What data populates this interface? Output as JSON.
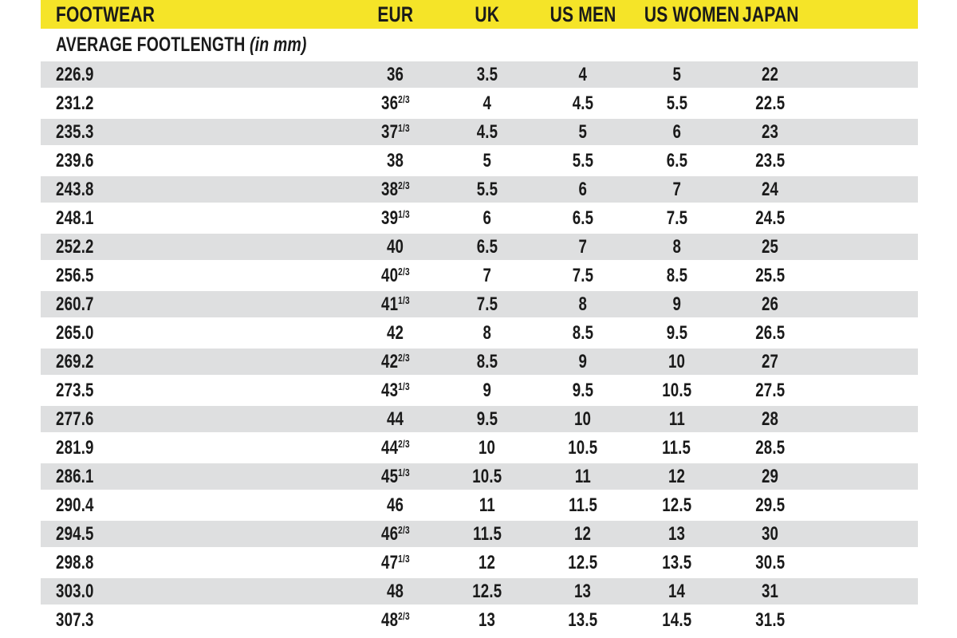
{
  "colors": {
    "header_bg": "#f5e428",
    "row_alt": "#dedfe0",
    "text": "#1a1a1a"
  },
  "subheader": {
    "label": "AVERAGE FOOTLENGTH",
    "note": "(in mm)"
  },
  "chart_data": {
    "type": "table",
    "title": "FOOTWEAR",
    "columns": [
      "FOOTWEAR",
      "EUR",
      "UK",
      "US MEN",
      "US WOMEN",
      "JAPAN"
    ],
    "subtitle": "AVERAGE FOOTLENGTH (in mm)",
    "rows": [
      [
        "226.9",
        "36",
        "3.5",
        "4",
        "5",
        "22"
      ],
      [
        "231.2",
        "36 2/3",
        "4",
        "4.5",
        "5.5",
        "22.5"
      ],
      [
        "235.3",
        "37 1/3",
        "4.5",
        "5",
        "6",
        "23"
      ],
      [
        "239.6",
        "38",
        "5",
        "5.5",
        "6.5",
        "23.5"
      ],
      [
        "243.8",
        "38 2/3",
        "5.5",
        "6",
        "7",
        "24"
      ],
      [
        "248.1",
        "39 1/3",
        "6",
        "6.5",
        "7.5",
        "24.5"
      ],
      [
        "252.2",
        "40",
        "6.5",
        "7",
        "8",
        "25"
      ],
      [
        "256.5",
        "40 2/3",
        "7",
        "7.5",
        "8.5",
        "25.5"
      ],
      [
        "260.7",
        "41 1/3",
        "7.5",
        "8",
        "9",
        "26"
      ],
      [
        "265.0",
        "42",
        "8",
        "8.5",
        "9.5",
        "26.5"
      ],
      [
        "269.2",
        "42 2/3",
        "8.5",
        "9",
        "10",
        "27"
      ],
      [
        "273.5",
        "43 1/3",
        "9",
        "9.5",
        "10.5",
        "27.5"
      ],
      [
        "277.6",
        "44",
        "9.5",
        "10",
        "11",
        "28"
      ],
      [
        "281.9",
        "44 2/3",
        "10",
        "10.5",
        "11.5",
        "28.5"
      ],
      [
        "286.1",
        "45 1/3",
        "10.5",
        "11",
        "12",
        "29"
      ],
      [
        "290.4",
        "46",
        "11",
        "11.5",
        "12.5",
        "29.5"
      ],
      [
        "294.5",
        "46 2/3",
        "11.5",
        "12",
        "13",
        "30"
      ],
      [
        "298.8",
        "47 1/3",
        "12",
        "12.5",
        "13.5",
        "30.5"
      ],
      [
        "303.0",
        "48",
        "12.5",
        "13",
        "14",
        "31"
      ],
      [
        "307.3",
        "48 2/3",
        "13",
        "13.5",
        "14.5",
        "31.5"
      ]
    ]
  }
}
